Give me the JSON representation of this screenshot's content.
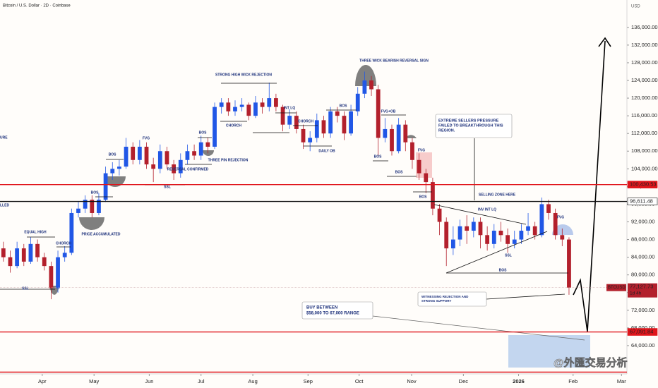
{
  "chart_data": {
    "type": "candlestick",
    "title": "Bitcoin / U.S. Dollar · 2D · Coinbase",
    "currency": "USD",
    "up_color": "#2157e6",
    "down_color": "#b3202c",
    "grid": false,
    "categories": [
      null,
      null,
      null,
      null,
      null,
      null,
      null,
      null,
      null,
      null,
      null,
      null,
      null,
      null,
      null,
      null,
      null,
      null,
      null,
      null,
      null,
      null,
      null,
      null,
      null,
      null,
      null,
      null,
      null,
      null,
      null,
      null,
      null,
      null,
      null,
      null,
      null,
      null,
      null,
      null,
      null,
      null,
      null,
      null,
      null,
      null,
      null,
      null,
      null,
      null,
      null,
      null,
      null,
      null,
      null,
      null,
      null,
      null,
      null,
      null,
      null,
      null,
      null,
      null,
      null,
      null,
      null,
      null,
      null,
      null,
      null,
      null,
      null,
      null,
      null,
      null,
      null,
      null,
      null,
      null,
      null,
      null,
      null,
      null
    ],
    "open": [
      86000,
      84000,
      82000,
      86000,
      83000,
      87000,
      84000,
      82000,
      77000,
      84000,
      85000,
      94000,
      95000,
      97000,
      94000,
      97000,
      103000,
      104000,
      104500,
      109000,
      106000,
      109000,
      105000,
      104000,
      108000,
      105000,
      103000,
      106000,
      108000,
      107000,
      110000,
      109000,
      118000,
      119000,
      117000,
      118000,
      118500,
      116000,
      119000,
      118000,
      120000,
      118000,
      114000,
      116000,
      113000,
      110000,
      111000,
      115000,
      112000,
      117000,
      116000,
      112000,
      117000,
      121000,
      124000,
      122000,
      111000,
      113000,
      108000,
      114000,
      110000,
      106000,
      103000,
      101000,
      95000,
      92000,
      86000,
      88000,
      91000,
      90000,
      92000,
      89000,
      87000,
      90000,
      89000,
      87000,
      88000,
      90000,
      91000,
      89000,
      96000,
      94000,
      89000,
      88000
    ],
    "high": [
      87500,
      85500,
      87500,
      87000,
      88500,
      88000,
      85000,
      83000,
      85500,
      86500,
      95000,
      96500,
      98000,
      98000,
      98500,
      104500,
      105500,
      106000,
      111000,
      110000,
      110500,
      110000,
      106500,
      109500,
      109000,
      106000,
      107500,
      109500,
      109500,
      111500,
      111000,
      119000,
      120000,
      120000,
      119500,
      120000,
      119000,
      120500,
      120000,
      123500,
      121000,
      118500,
      117500,
      117000,
      114000,
      112500,
      116500,
      116000,
      118000,
      118000,
      117000,
      118500,
      122500,
      126000,
      125000,
      123000,
      115500,
      114000,
      115500,
      115000,
      111000,
      107500,
      104000,
      102000,
      96000,
      93000,
      91000,
      92500,
      93500,
      93000,
      93000,
      91000,
      91500,
      92000,
      90500,
      90000,
      91500,
      94000,
      92000,
      97500,
      97000,
      95000,
      90500,
      88500
    ],
    "low": [
      83000,
      80500,
      81500,
      82000,
      82500,
      83000,
      81000,
      74500,
      76000,
      83000,
      84500,
      93000,
      94000,
      93000,
      93500,
      96500,
      101500,
      102500,
      104000,
      105000,
      105000,
      104000,
      101000,
      103000,
      104000,
      101500,
      102000,
      105000,
      106000,
      106000,
      107500,
      108500,
      116500,
      116000,
      116000,
      117000,
      115000,
      115500,
      116500,
      117000,
      117000,
      112500,
      113000,
      112000,
      108500,
      108000,
      110000,
      111000,
      111000,
      114500,
      110500,
      111500,
      116000,
      120000,
      120500,
      107000,
      110000,
      107000,
      107500,
      108000,
      104000,
      101500,
      98500,
      93500,
      89000,
      82000,
      84500,
      86500,
      87000,
      88500,
      86000,
      85500,
      86000,
      87500,
      85000,
      86000,
      87000,
      89000,
      88000,
      88500,
      92500,
      88000,
      86500,
      75500
    ],
    "close": [
      84000,
      82000,
      86000,
      83000,
      87000,
      84000,
      82000,
      77000,
      84000,
      85000,
      94000,
      95000,
      97000,
      94000,
      97000,
      103000,
      104000,
      104500,
      109000,
      106000,
      109000,
      105000,
      104000,
      108000,
      105000,
      103000,
      106000,
      108000,
      107000,
      110000,
      109000,
      118000,
      119000,
      117000,
      118000,
      118500,
      116000,
      119000,
      118000,
      120000,
      118000,
      114000,
      116000,
      113000,
      110000,
      111000,
      115000,
      112000,
      117000,
      116000,
      112000,
      117000,
      121000,
      124000,
      122000,
      111000,
      113000,
      108000,
      114000,
      110000,
      106000,
      103000,
      101000,
      95000,
      92000,
      86000,
      88000,
      91000,
      90000,
      92000,
      89000,
      87000,
      90000,
      89000,
      87000,
      88000,
      90000,
      91000,
      89000,
      96000,
      94000,
      89000,
      88000,
      77127.73
    ],
    "xlim": [
      0,
      92
    ],
    "xticks": [
      {
        "value": 6.2,
        "label": "Apr"
      },
      {
        "value": 13.8,
        "label": "May"
      },
      {
        "value": 21.9,
        "label": "Jun"
      },
      {
        "value": 29.5,
        "label": "Jul"
      },
      {
        "value": 37.1,
        "label": "Aug"
      },
      {
        "value": 45.2,
        "label": "Sep"
      },
      {
        "value": 52.7,
        "label": "Oct"
      },
      {
        "value": 60.4,
        "label": "Nov"
      },
      {
        "value": 68.0,
        "label": "Dec"
      },
      {
        "value": 76.1,
        "label": "2026"
      },
      {
        "value": 84.1,
        "label": "Feb"
      },
      {
        "value": 91.2,
        "label": "Mar"
      }
    ],
    "ylim": [
      57600,
      142200
    ],
    "yticks": [
      {
        "value": 64000,
        "label": "64,000.00"
      },
      {
        "value": 68000,
        "label": "68,000.00"
      },
      {
        "value": 72000,
        "label": "72,000.00"
      },
      {
        "value": 76000,
        "label": "76,000.00"
      },
      {
        "value": 80000,
        "label": "80,000.00"
      },
      {
        "value": 84000,
        "label": "84,000.00"
      },
      {
        "value": 88000,
        "label": "88,000.00"
      },
      {
        "value": 92000,
        "label": "92,000.00"
      },
      {
        "value": 96000,
        "label": "96,000.00"
      },
      {
        "value": 100000,
        "label": "100,000.00"
      },
      {
        "value": 104000,
        "label": "104,000.00"
      },
      {
        "value": 108000,
        "label": "108,000.00"
      },
      {
        "value": 112000,
        "label": "112,000.00"
      },
      {
        "value": 116000,
        "label": "116,000.00"
      },
      {
        "value": 120000,
        "label": "120,000.00"
      },
      {
        "value": 124000,
        "label": "124,000.00"
      },
      {
        "value": 128000,
        "label": "128,000.00"
      },
      {
        "value": 132000,
        "label": "132,000.00"
      },
      {
        "value": 136000,
        "label": "136,000.00"
      }
    ],
    "levels": [
      {
        "value": 100430.53,
        "label": "100,430.53",
        "color": "#e0151b"
      },
      {
        "value": 96611.48,
        "label": "96,611.48",
        "color": "#111111"
      },
      {
        "value": 67091.84,
        "label": "67,091.84",
        "color": "#e0151b"
      },
      {
        "value": 58000,
        "color": "#e0151b"
      }
    ],
    "last": {
      "name": "BTCUSD",
      "value": 77127.73,
      "label": "77,127.73",
      "countdown": "1d 4h"
    },
    "annotations": [
      "BOS",
      "BOS",
      "BOS",
      "BOS",
      "BOS",
      "BOS",
      "BOS",
      "BOS",
      "FVG",
      "FVG",
      "FVG",
      "FVG+OB",
      "CHORCH",
      "CHORCH",
      "CHORCH",
      "EQUAL HIGH",
      "SSL",
      "SSL",
      "SSL",
      "PRICE ACCUMULATED",
      "REVERSAL CONFIRMED",
      "THREE PIN REJECTION",
      "STRONG HIGH WICK REJECTION",
      "INT LQ",
      "DAILY OB",
      "THREE WICK BEARISH REVERSAL SIGN",
      "INV INT LQ",
      "SELLING ZONE HERE",
      "URE",
      "LLED"
    ],
    "callouts": [
      [
        "EXTREME SELLERS PRESSURE",
        "FAILED TO BREAKTHROUGH THIS",
        "REGION."
      ],
      [
        "WITNESSING REJECTION AND",
        "STRONG SUPPORT"
      ],
      [
        "BUY BETWEEN",
        "$58,000 TO 67,000 RANGE"
      ]
    ],
    "watermark": "@外匯交易分析"
  }
}
